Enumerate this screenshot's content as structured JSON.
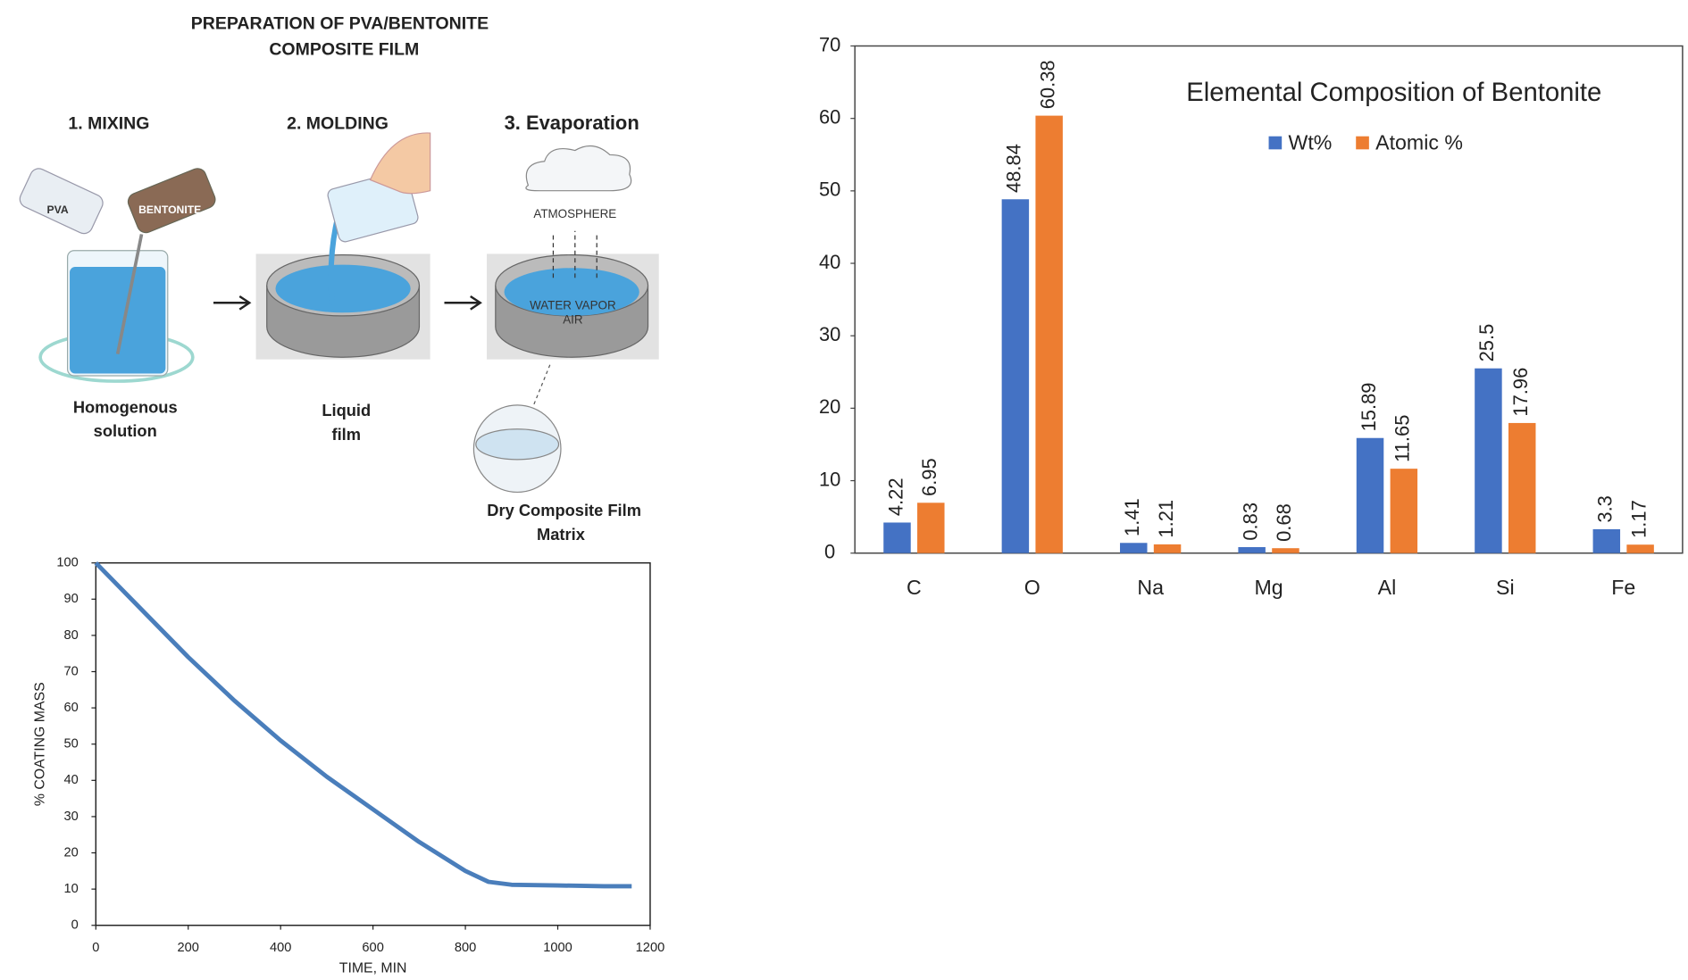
{
  "diagram": {
    "title": [
      "PREPARATION OF PVA/BENTONITE",
      "COMPOSITE FILM"
    ],
    "steps": [
      "1. MIXING",
      "2. MOLDING",
      "3. Evaporation"
    ],
    "labels": {
      "pva": "PVA",
      "bentonite": "BENTONITE",
      "atmosphere": "ATMOSPHERE",
      "vapor": [
        "WATER VAPOR",
        "AIR"
      ]
    },
    "captions": [
      [
        "Homogenous",
        "solution"
      ],
      [
        "Liquid",
        "film"
      ],
      [
        "Dry Composite Film",
        "Matrix"
      ]
    ]
  },
  "chart_data": [
    {
      "type": "bar",
      "title": "Elemental Composition of Bentonite",
      "categories": [
        "C",
        "O",
        "Na",
        "Mg",
        "Al",
        "Si",
        "Fe"
      ],
      "series": [
        {
          "name": "Wt%",
          "color": "#4472c4",
          "values": [
            4.22,
            48.84,
            1.41,
            0.83,
            15.89,
            25.5,
            3.3
          ]
        },
        {
          "name": "Atomic %",
          "color": "#ed7d31",
          "values": [
            6.95,
            60.38,
            1.21,
            0.68,
            11.65,
            17.96,
            1.17
          ]
        }
      ],
      "ylim": [
        0,
        70
      ],
      "yticks": [
        0,
        10,
        20,
        30,
        40,
        50,
        60,
        70
      ],
      "legend": "top"
    },
    {
      "type": "line",
      "xlabel": "TIME, MIN",
      "ylabel": "% COATING MASS",
      "series": [
        {
          "color": "#4a7ebb",
          "x": [
            0,
            100,
            200,
            300,
            400,
            500,
            600,
            700,
            800,
            850,
            900,
            1000,
            1100,
            1160
          ],
          "values": [
            100,
            87,
            74,
            62,
            51,
            41,
            32,
            23,
            15,
            12,
            11.2,
            11,
            10.8,
            10.8
          ]
        }
      ],
      "xlim": [
        0,
        1200
      ],
      "xticks": [
        0,
        200,
        400,
        600,
        800,
        1000,
        1200
      ],
      "ylim": [
        0,
        100
      ],
      "yticks": [
        0,
        10,
        20,
        30,
        40,
        50,
        60,
        70,
        80,
        90,
        100
      ]
    }
  ]
}
